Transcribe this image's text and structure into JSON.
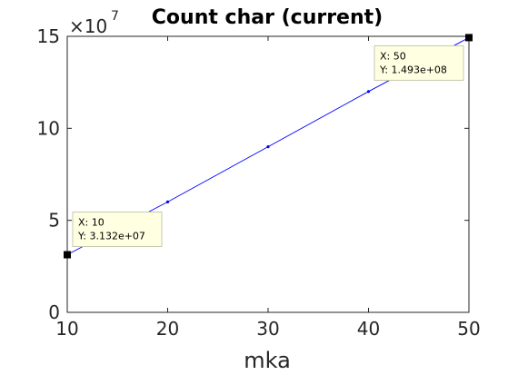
{
  "chart_data": {
    "type": "line",
    "title": "Count char (current)",
    "xlabel": "mka",
    "ylabel": "",
    "x": [
      10,
      20,
      30,
      40,
      50
    ],
    "series": [
      {
        "values": [
          31320000.0,
          60000000.0,
          90000000.0,
          120000000.0,
          149300000.0
        ],
        "color": "#0000ff"
      }
    ],
    "xlim": [
      10,
      50
    ],
    "ylim": [
      0,
      150000000
    ],
    "xticks": [
      "10",
      "20",
      "30",
      "40",
      "50"
    ],
    "yticks": [
      "0",
      "5",
      "10",
      "15"
    ],
    "y_exponent_prefix": "×10",
    "y_exponent_power": "7",
    "grid": false,
    "datatips": [
      {
        "x_label": "X: 10",
        "y_label": "Y: 3.132e+07",
        "x": 10,
        "y": 31320000
      },
      {
        "x_label": "X: 50",
        "y_label": "Y: 1.493e+08",
        "x": 50,
        "y": 149300000
      }
    ]
  }
}
